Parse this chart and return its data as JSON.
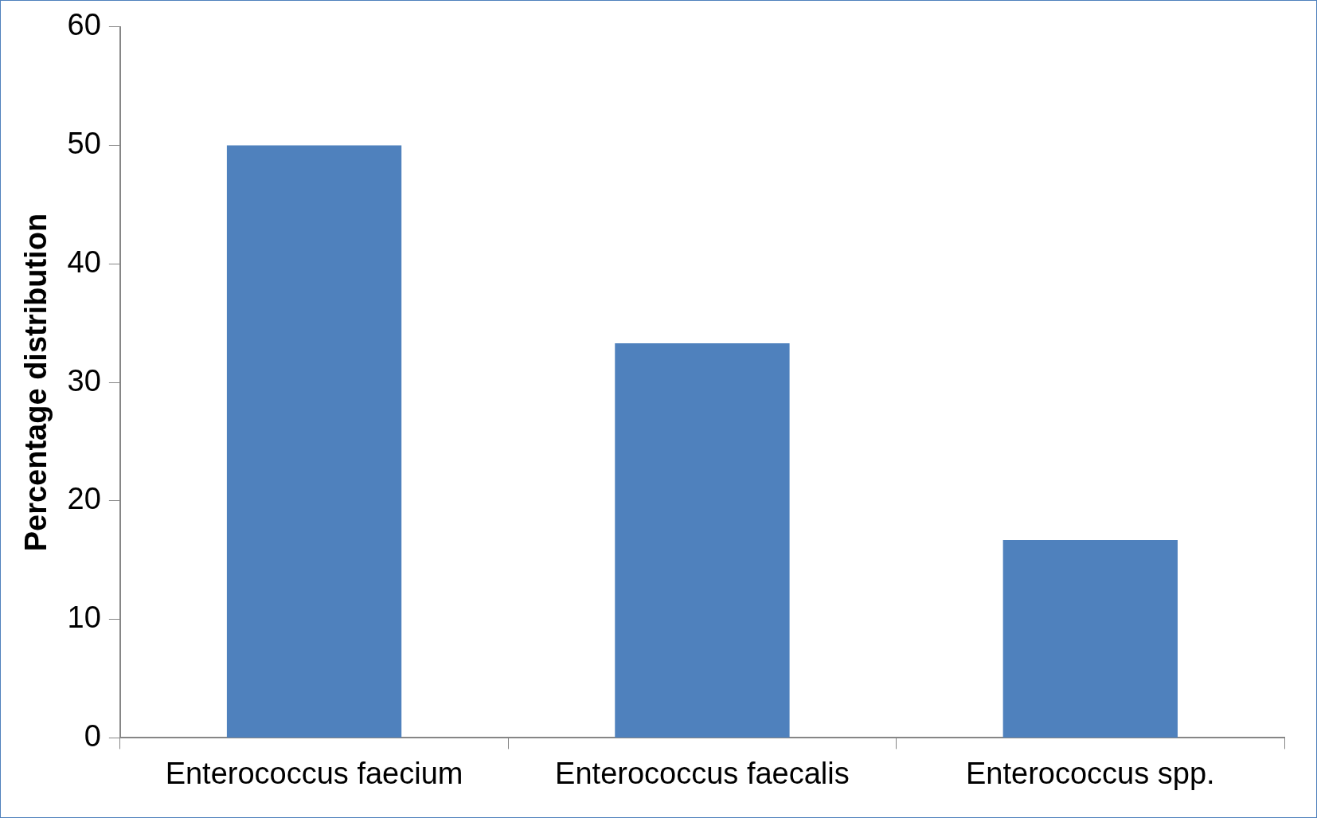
{
  "chart_data": {
    "type": "bar",
    "ylabel": "Percentage distribution",
    "categories": [
      "Enterococcus faecium",
      "Enterococcus faecalis",
      "Enterococcus spp."
    ],
    "values": [
      50,
      33.3,
      16.7
    ],
    "color": "#4f81bd",
    "ylim": [
      0,
      60
    ],
    "yticks": [
      0,
      10,
      20,
      30,
      40,
      50,
      60
    ]
  }
}
